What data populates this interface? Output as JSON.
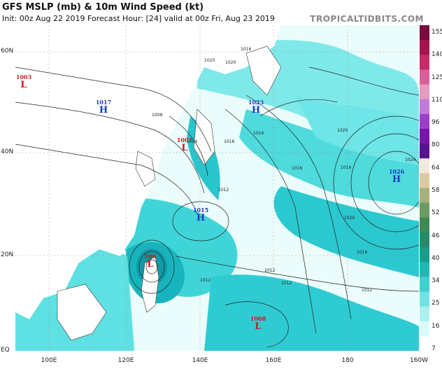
{
  "header": {
    "title": "GFS MSLP (mb) & 10m Wind Speed (kt)",
    "subtitle": "Init: 00z Aug 22 2019   Forecast Hour: [24]   valid at 00z Fri, Aug 23 2019",
    "brand": "TROPICALTIDBITS.COM"
  },
  "axes": {
    "lat_labels": [
      "60N",
      "40N",
      "20N",
      "EQ"
    ],
    "lon_labels": [
      "100E",
      "120E",
      "140E",
      "160E",
      "180",
      "160W"
    ]
  },
  "colorbar": {
    "labels": [
      "155",
      "140",
      "125",
      "110",
      "96",
      "80",
      "64",
      "58",
      "52",
      "46",
      "40",
      "34",
      "25",
      "16",
      "7"
    ],
    "colors": [
      "#7a0b3e",
      "#a4144d",
      "#c72b68",
      "#d8609a",
      "#e69ac0",
      "#c27ad9",
      "#9f3ec9",
      "#7b14ab",
      "#5a1390",
      "#f3eadd",
      "#dcc9a4",
      "#a5b07a",
      "#6b9a63",
      "#3e8a52",
      "#27896a",
      "#1a9b8c",
      "#21b6b6",
      "#3fd0d0",
      "#6fe3e3",
      "#a9f0ef",
      "#d9fbfa",
      "#ffffff"
    ]
  },
  "map_colors": {
    "land": "#ffffff",
    "sea_calm": "#eafcfb",
    "wind_light": "#9ef1ef",
    "wind_moderate": "#3fd5d8",
    "wind_strong": "#12b0bd",
    "wind_core": "#2c9e55",
    "isobar": "#222222"
  },
  "pressure_centers": [
    {
      "type": "L",
      "value": "1003"
    },
    {
      "type": "H",
      "value": "1017"
    },
    {
      "type": "H",
      "value": "1023"
    },
    {
      "type": "L",
      "value": "1007"
    },
    {
      "type": "H",
      "value": "1026"
    },
    {
      "type": "H",
      "value": "1015"
    },
    {
      "type": "L",
      "value": "996"
    },
    {
      "type": "L",
      "value": "1008"
    }
  ],
  "isobar_labels": [
    "1016",
    "1020",
    "1008",
    "1012",
    "1016",
    "1004",
    "1016",
    "1020",
    "1016",
    "1024",
    "1012",
    "1012",
    "1016",
    "1020",
    "1012",
    "1012",
    "1016",
    "1020"
  ]
}
